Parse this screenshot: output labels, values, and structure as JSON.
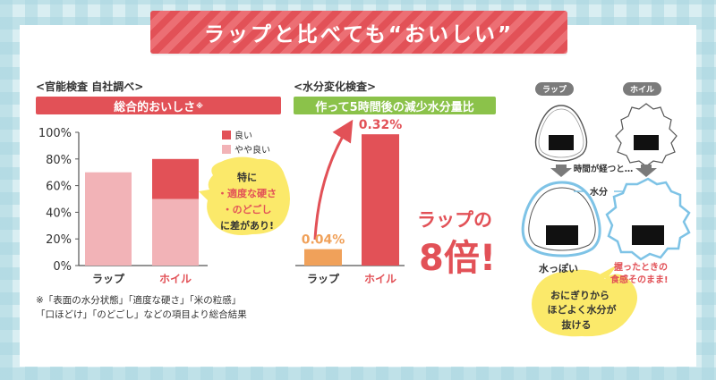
{
  "header": {
    "title": "ラップと比べても“おいしい”"
  },
  "left": {
    "section_label": "<官能検査 自社調べ>",
    "bar_title": "総合的おいしさ",
    "bar_title_mark": "※",
    "note_line1": "※「表面の水分状態」「適度な硬さ」「米の粒感」",
    "note_line2": "「口ほどけ」「のどごし」などの項目より総合結果",
    "bubble": {
      "line1": "特に",
      "line2": "・適度な硬さ",
      "line3": "・のどごし",
      "line4": "に差があり!"
    }
  },
  "middle": {
    "section_label": "<水分変化検査>",
    "bar_title": "作って5時間後の減少水分量比",
    "callout_line1": "ラップの",
    "callout_line2": "8倍!"
  },
  "right": {
    "tag_wrap": "ラップ",
    "tag_foil": "ホイル",
    "time_passes": "時間が経つと…",
    "water_label": "水分",
    "caption_wrap": "水っぽい",
    "caption_foil_line1": "握ったときの",
    "caption_foil_line2": "食感そのまま!",
    "bubble_line1": "おにぎりから",
    "bubble_line2": "ほどよく水分が",
    "bubble_line3": "抜ける"
  },
  "colors": {
    "red": "#e25157",
    "pink": "#f2b3b7",
    "green": "#8bc24a",
    "orange": "#f0a15a",
    "yellow": "#fbe96a"
  },
  "chart_data": [
    {
      "type": "bar",
      "stacked": true,
      "categories": [
        "ラップ",
        "ホイル"
      ],
      "series": [
        {
          "name": "やや良い",
          "values": [
            70,
            50
          ],
          "color": "#f2b3b7"
        },
        {
          "name": "良い",
          "values": [
            0,
            30
          ],
          "color": "#e25157"
        }
      ],
      "yticks": [
        "0%",
        "20%",
        "40%",
        "60%",
        "80%",
        "100%"
      ],
      "ylim": [
        0,
        100
      ],
      "legend_position": "top-right",
      "grid": false
    },
    {
      "type": "bar",
      "categories": [
        "ラップ",
        "ホイル"
      ],
      "values": [
        0.04,
        0.32
      ],
      "value_labels": [
        "0.04%",
        "0.32%"
      ],
      "colors": [
        "#f0a15a",
        "#e25157"
      ],
      "ylim": [
        0,
        0.34
      ],
      "grid": false
    }
  ]
}
